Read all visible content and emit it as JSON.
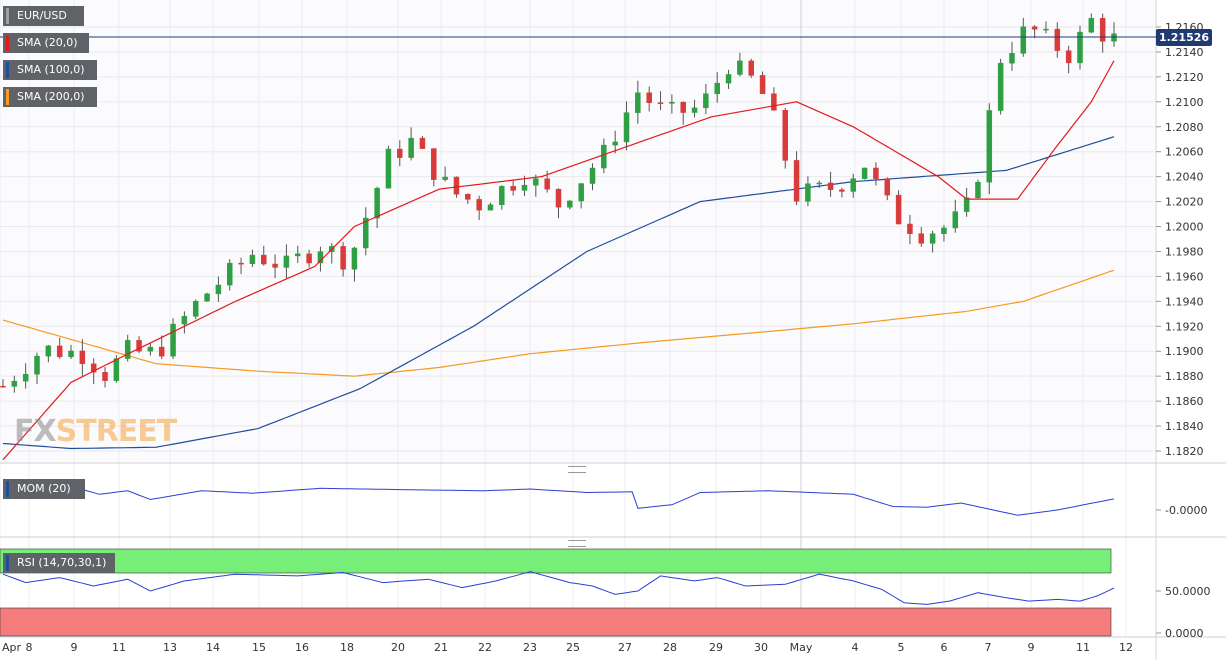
{
  "chart_data": {
    "type": "candlestick",
    "symbol": "EUR/USD",
    "last_price": "1.21526",
    "main_axis": {
      "ylim": [
        1.181,
        1.2185
      ],
      "ticks": [
        "1.2160",
        "1.2140",
        "1.2120",
        "1.2100",
        "1.2080",
        "1.2060",
        "1.2040",
        "1.2020",
        "1.2000",
        "1.1980",
        "1.1960",
        "1.1940",
        "1.1920",
        "1.1900",
        "1.1880",
        "1.1860",
        "1.1840",
        "1.1820"
      ]
    },
    "x_labels": [
      "Apr",
      "8",
      "9",
      "11",
      "13",
      "14",
      "15",
      "16",
      "18",
      "20",
      "21",
      "22",
      "23",
      "25",
      "27",
      "28",
      "29",
      "30",
      "May",
      "4",
      "5",
      "6",
      "7",
      "9",
      "11",
      "12"
    ],
    "indicators": {
      "sma20_label": "SMA (20,0)",
      "sma100_label": "SMA (100,0)",
      "sma200_label": "SMA (200,0)",
      "mom_label": "MOM (20)",
      "mom_tick": "-0.0000",
      "rsi_label": "RSI (14,70,30,1)",
      "rsi_ticks": [
        "50.0000",
        "0.0000"
      ]
    },
    "anchors": {
      "close": [
        [
          1.1872,
          0
        ],
        [
          1.1902,
          14
        ],
        [
          1.1898,
          28
        ],
        [
          1.1882,
          36
        ],
        [
          1.19,
          44
        ],
        [
          1.1898,
          54
        ],
        [
          1.1943,
          70
        ],
        [
          1.1978,
          88
        ],
        [
          1.1968,
          100
        ],
        [
          1.1985,
          112
        ],
        [
          1.1972,
          122
        ],
        [
          1.2055,
          136
        ],
        [
          1.2068,
          144
        ],
        [
          1.2028,
          158
        ],
        [
          1.2018,
          168
        ],
        [
          1.2042,
          184
        ],
        [
          1.2018,
          196
        ],
        [
          1.2058,
          212
        ],
        [
          1.2108,
          224
        ],
        [
          1.209,
          234
        ],
        [
          1.2095,
          246
        ],
        [
          1.213,
          256
        ],
        [
          1.2118,
          264
        ],
        [
          1.21,
          270
        ],
        [
          1.2025,
          280
        ],
        [
          1.2032,
          294
        ],
        [
          1.205,
          304
        ],
        [
          1.201,
          314
        ],
        [
          1.1995,
          324
        ],
        [
          1.2,
          334
        ],
        [
          1.202,
          342
        ],
        [
          1.2135,
          352
        ],
        [
          1.216,
          362
        ],
        [
          1.215,
          368
        ],
        [
          1.2138,
          376
        ],
        [
          1.2165,
          384
        ],
        [
          1.215,
          390
        ]
      ],
      "sma20": [
        [
          1.1813,
          0
        ],
        [
          1.1875,
          24
        ],
        [
          1.19,
          46
        ],
        [
          1.194,
          82
        ],
        [
          1.1968,
          110
        ],
        [
          1.2,
          124
        ],
        [
          1.203,
          154
        ],
        [
          1.204,
          190
        ],
        [
          1.2064,
          220
        ],
        [
          1.2088,
          250
        ],
        [
          1.21,
          280
        ],
        [
          1.208,
          300
        ],
        [
          1.204,
          330
        ],
        [
          1.2022,
          340
        ],
        [
          1.2022,
          358
        ],
        [
          1.2065,
          372
        ],
        [
          1.21,
          384
        ],
        [
          1.2133,
          392
        ]
      ],
      "sma100": [
        [
          1.1826,
          0
        ],
        [
          1.1822,
          24
        ],
        [
          1.1823,
          54
        ],
        [
          1.1838,
          90
        ],
        [
          1.187,
          126
        ],
        [
          1.192,
          166
        ],
        [
          1.198,
          206
        ],
        [
          1.202,
          246
        ],
        [
          1.2036,
          300
        ],
        [
          1.2045,
          354
        ],
        [
          1.2072,
          392
        ]
      ],
      "sma200": [
        [
          1.1925,
          0
        ],
        [
          1.189,
          54
        ],
        [
          1.1884,
          90
        ],
        [
          1.188,
          124
        ],
        [
          1.1887,
          154
        ],
        [
          1.1898,
          186
        ],
        [
          1.1907,
          226
        ],
        [
          1.1915,
          266
        ],
        [
          1.1922,
          300
        ],
        [
          1.1932,
          340
        ],
        [
          1.194,
          360
        ],
        [
          1.1965,
          392
        ]
      ],
      "mom": [
        [
          0.45,
          0
        ],
        [
          0.85,
          16
        ],
        [
          0.45,
          34
        ],
        [
          0.55,
          44
        ],
        [
          0.3,
          52
        ],
        [
          0.55,
          70
        ],
        [
          0.48,
          88
        ],
        [
          0.62,
          112
        ],
        [
          0.58,
          142
        ],
        [
          0.55,
          170
        ],
        [
          0.6,
          186
        ],
        [
          0.5,
          206
        ],
        [
          0.52,
          222
        ],
        [
          0.05,
          224
        ],
        [
          0.15,
          236
        ],
        [
          0.5,
          246
        ],
        [
          0.55,
          270
        ],
        [
          0.45,
          300
        ],
        [
          0.1,
          314
        ],
        [
          0.08,
          326
        ],
        [
          0.2,
          338
        ],
        [
          -0.15,
          358
        ],
        [
          0.0,
          372
        ],
        [
          0.35,
          394
        ],
        [
          0.45,
          400
        ],
        [
          0.05,
          412
        ],
        [
          0.85,
          416
        ],
        [
          0.8,
          430
        ],
        [
          0.95,
          446
        ],
        [
          0.7,
          460
        ],
        [
          0.58,
          472
        ],
        [
          0.55,
          480
        ],
        [
          0.6,
          488
        ],
        [
          0.45,
          496
        ],
        [
          0.55,
          500
        ],
        [
          0.9,
          508
        ],
        [
          0.95,
          516
        ],
        [
          0.85,
          524
        ],
        [
          0.95,
          528
        ],
        [
          0.9,
          536
        ],
        [
          0.85,
          542
        ],
        [
          0.6,
          556
        ]
      ],
      "rsi": [
        [
          70,
          0
        ],
        [
          60,
          8
        ],
        [
          66,
          20
        ],
        [
          56,
          32
        ],
        [
          64,
          44
        ],
        [
          50,
          52
        ],
        [
          62,
          64
        ],
        [
          70,
          82
        ],
        [
          68,
          104
        ],
        [
          72,
          120
        ],
        [
          60,
          134
        ],
        [
          64,
          150
        ],
        [
          54,
          162
        ],
        [
          62,
          174
        ],
        [
          73,
          186
        ],
        [
          60,
          200
        ],
        [
          56,
          208
        ],
        [
          46,
          216
        ],
        [
          50,
          224
        ],
        [
          68,
          232
        ],
        [
          62,
          244
        ],
        [
          66,
          252
        ],
        [
          56,
          262
        ],
        [
          58,
          276
        ],
        [
          70,
          288
        ],
        [
          62,
          300
        ],
        [
          52,
          310
        ],
        [
          36,
          318
        ],
        [
          34,
          326
        ],
        [
          38,
          334
        ],
        [
          48,
          344
        ],
        [
          42,
          354
        ],
        [
          38,
          362
        ],
        [
          40,
          372
        ],
        [
          38,
          380
        ],
        [
          44,
          386
        ],
        [
          60,
          396
        ],
        [
          64,
          404
        ],
        [
          78,
          412
        ],
        [
          72,
          424
        ],
        [
          70,
          436
        ],
        [
          60,
          446
        ],
        [
          62,
          456
        ],
        [
          66,
          466
        ],
        [
          52,
          472
        ]
      ]
    }
  }
}
